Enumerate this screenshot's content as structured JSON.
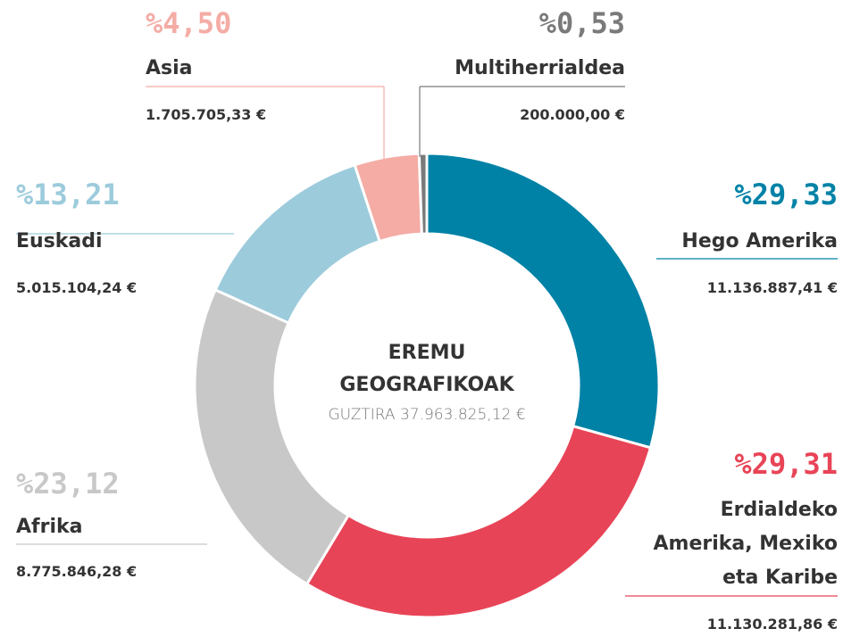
{
  "chart_data": {
    "type": "donut",
    "title": "EREMU GEOGRAFIKOAK",
    "subtitle": "GUZTIRA 37.963.825,12 €",
    "categories": [
      "Hego Amerika",
      "Erdialdeko Amerika, Mexiko eta Karibe",
      "Afrika",
      "Euskadi",
      "Asia",
      "Multiherrialdea"
    ],
    "values": [
      29.33,
      29.31,
      23.12,
      13.21,
      4.5,
      0.53
    ],
    "value_labels": [
      "%29,33",
      "%29,31",
      "%23,12",
      "%13,21",
      "%4,50",
      "%0,53"
    ],
    "amounts": [
      "11.136.887,41 €",
      "11.130.281,86 €",
      "8.775.846,28 €",
      "5.015.104,24 €",
      "1.705.705,33 €",
      "200.000,00 €"
    ],
    "colors": [
      "#0082a6",
      "#e84457",
      "#c8c8c8",
      "#9ccbdc",
      "#f4aca5",
      "#7a7a7a"
    ]
  }
}
